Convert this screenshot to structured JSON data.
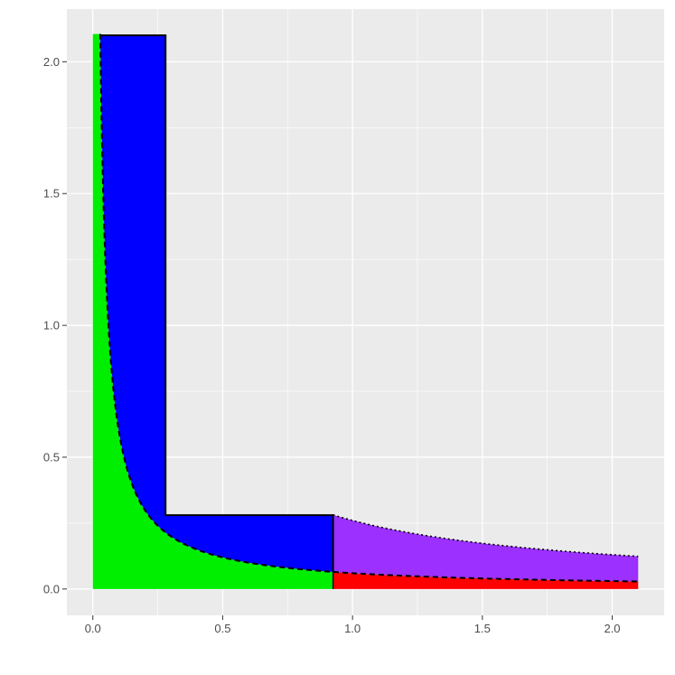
{
  "chart_data": {
    "type": "area",
    "title": "",
    "xlabel": "",
    "ylabel": "",
    "xlim": [
      -0.1,
      2.2
    ],
    "ylim": [
      -0.1,
      2.2
    ],
    "x_ticks": [
      0.0,
      0.5,
      1.0,
      1.5,
      2.0
    ],
    "x_tick_labels": [
      "0.0",
      "0.5",
      "1.0",
      "1.5",
      "2.0"
    ],
    "y_ticks": [
      0.0,
      0.5,
      1.0,
      1.5,
      2.0
    ],
    "y_tick_labels": [
      "0.0",
      "0.5",
      "1.0",
      "1.5",
      "2.0"
    ],
    "grid": true,
    "background_color": "#ebebeb",
    "grid_color": "#ffffff",
    "curve": {
      "function": "y = 0.06 / x",
      "x_range": [
        0.0285,
        2.1
      ],
      "style": "dashed"
    },
    "purple_curve": {
      "function": "y = 0.26 / x",
      "x_range": [
        0.925,
        2.1
      ],
      "style": "dotted"
    },
    "regions": [
      {
        "name": "green",
        "color": "#00ee00",
        "description": "area under dashed curve from x=0 to x=0.925"
      },
      {
        "name": "red",
        "color": "#ff0000",
        "description": "area under dashed curve from x=0.925 to x=2.1"
      },
      {
        "name": "blue",
        "color": "#0000ff",
        "outline": [
          [
            0.0285,
            2.1
          ],
          [
            0.28,
            2.1
          ],
          [
            0.28,
            0.28
          ],
          [
            0.925,
            0.28
          ],
          [
            0.925,
            0.065
          ]
        ]
      },
      {
        "name": "purple",
        "color": "#9b30ff",
        "description": "area between dashed curve and dotted curve from x=0.925 to x=2.1"
      }
    ]
  }
}
